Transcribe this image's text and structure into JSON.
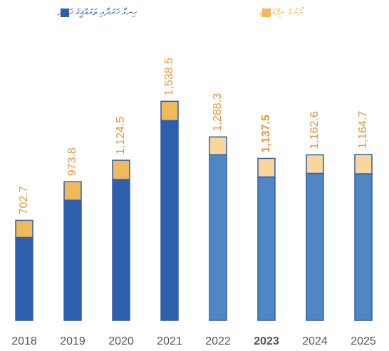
{
  "chart_data": {
    "type": "stacked_bar",
    "categories": [
      "2018",
      "2019",
      "2020",
      "2021",
      "2022",
      "2023",
      "2024",
      "2025"
    ],
    "series": [
      {
        "name": "ހިނގާ ޚަރަދާއި ތަރައްޤީގެ ޚަރަދު",
        "color": "#2e5fac",
        "colors": [
          "#2e5fac",
          "#2e5fac",
          "#2e5fac",
          "#2e5fac",
          "#4f86c6",
          "#4f86c6",
          "#4f86c6",
          "#4f86c6"
        ],
        "values": [
          582.7,
          843.8,
          989.5,
          1403.5,
          1163.3,
          1007.5,
          1032.6,
          1029.7
        ]
      },
      {
        "name": "ލޯނުގެ ރިޕޭމަންޓް",
        "color": "#f0b95a",
        "colors": [
          "#f0b95a",
          "#f0b95a",
          "#f0b95a",
          "#f0b95a",
          "#f9d69a",
          "#f9d69a",
          "#f9d69a",
          "#f9d69a"
        ],
        "values": [
          120,
          130,
          135,
          135,
          125,
          130,
          130,
          135
        ]
      }
    ],
    "totals": [
      702.7,
      973.8,
      1124.5,
      1538.5,
      1288.3,
      1137.5,
      1162.6,
      1164.7
    ],
    "value_labels": [
      "702.7",
      "973.8",
      "1,124.5",
      "1,538.5",
      "1,288.3",
      "1,137.5",
      "1,162.6",
      "1,164.7"
    ],
    "highlight_index": 5,
    "ylim": [
      0,
      2250
    ]
  }
}
